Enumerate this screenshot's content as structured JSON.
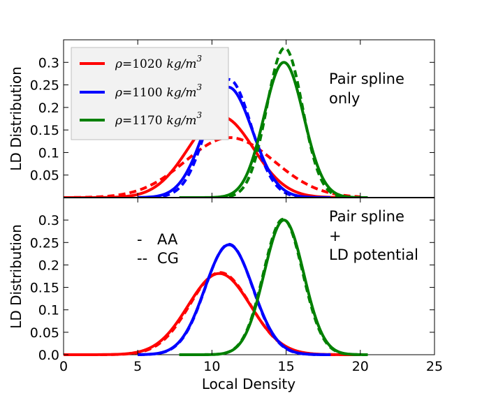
{
  "chart_data": [
    {
      "type": "line",
      "panel": "top",
      "ylabel": "LD Distribution",
      "xlim": [
        0,
        25
      ],
      "ylim": [
        0,
        0.35
      ],
      "yticks": [
        "0.05",
        "0.1",
        "0.15",
        "0.2",
        "0.25",
        "0.3"
      ],
      "annotation": [
        "Pair spline",
        "only"
      ],
      "legend": {
        "placement": "top-left",
        "entries": [
          {
            "prefix": "ρ",
            "value": "=1020",
            "unit": "kg/m",
            "exp": "3",
            "color": "#ff0000"
          },
          {
            "prefix": "ρ",
            "value": "=1100",
            "unit": "kg/m",
            "exp": "3",
            "color": "#0000ff"
          },
          {
            "prefix": "ρ",
            "value": "=1170",
            "unit": "kg/m",
            "exp": "3",
            "color": "#008000"
          }
        ]
      },
      "series": [
        {
          "name": "ρ=1020 AA",
          "style": "solid",
          "color": "#ff0000",
          "mu": 10.6,
          "sigma": 2.2,
          "peak": 0.18,
          "x_range": [
            0,
            20
          ]
        },
        {
          "name": "ρ=1020 CG",
          "style": "dashed",
          "color": "#ff0000",
          "mu": 11.2,
          "sigma": 3.0,
          "peak": 0.133,
          "x_range": [
            0.7,
            20
          ]
        },
        {
          "name": "ρ=1100 AA",
          "style": "solid",
          "color": "#0000ff",
          "mu": 11.1,
          "sigma": 1.63,
          "peak": 0.245,
          "x_range": [
            5,
            18
          ]
        },
        {
          "name": "ρ=1100 CG",
          "style": "dashed",
          "color": "#0000ff",
          "mu": 11.15,
          "sigma": 1.5,
          "peak": 0.262,
          "x_range": [
            5.2,
            17
          ]
        },
        {
          "name": "ρ=1170 AA",
          "style": "solid",
          "color": "#008000",
          "mu": 14.85,
          "sigma": 1.33,
          "peak": 0.3,
          "x_range": [
            7.8,
            20.5
          ]
        },
        {
          "name": "ρ=1170 CG",
          "style": "dashed",
          "color": "#008000",
          "mu": 14.9,
          "sigma": 1.2,
          "peak": 0.332,
          "x_range": [
            10.4,
            19.3
          ]
        }
      ]
    },
    {
      "type": "line",
      "panel": "bottom",
      "xlabel": "Local Density",
      "ylabel": "LD Distribution",
      "xlim": [
        0,
        25
      ],
      "ylim": [
        0,
        0.35
      ],
      "xticks": [
        "0",
        "5",
        "10",
        "15",
        "20",
        "25"
      ],
      "yticks": [
        "0.0",
        "0.05",
        "0.1",
        "0.15",
        "0.2",
        "0.25",
        "0.3"
      ],
      "annotation": [
        "Pair spline",
        "+",
        "LD potential"
      ],
      "style_key": [
        {
          "marker": "-",
          "label": "AA"
        },
        {
          "marker": "--",
          "label": "CG"
        }
      ],
      "series": [
        {
          "name": "ρ=1020 AA",
          "style": "solid",
          "color": "#ff0000",
          "mu": 10.5,
          "sigma": 2.1,
          "peak": 0.181,
          "x_range": [
            0,
            20
          ]
        },
        {
          "name": "ρ=1020 CG",
          "style": "dashed",
          "color": "#ff0000",
          "mu": 10.55,
          "sigma": 2.05,
          "peak": 0.183,
          "x_range": [
            0.2,
            20
          ]
        },
        {
          "name": "ρ=1100 AA",
          "style": "solid",
          "color": "#0000ff",
          "mu": 11.15,
          "sigma": 1.62,
          "peak": 0.245,
          "x_range": [
            5,
            18
          ]
        },
        {
          "name": "ρ=1100 CG",
          "style": "dashed",
          "color": "#0000ff",
          "mu": 11.15,
          "sigma": 1.6,
          "peak": 0.246,
          "x_range": [
            5,
            18
          ]
        },
        {
          "name": "ρ=1170 AA",
          "style": "solid",
          "color": "#008000",
          "mu": 14.85,
          "sigma": 1.33,
          "peak": 0.3,
          "x_range": [
            7.8,
            20.5
          ]
        },
        {
          "name": "ρ=1170 CG",
          "style": "dashed",
          "color": "#008000",
          "mu": 14.8,
          "sigma": 1.32,
          "peak": 0.302,
          "x_range": [
            7.8,
            20.5
          ]
        }
      ]
    }
  ]
}
